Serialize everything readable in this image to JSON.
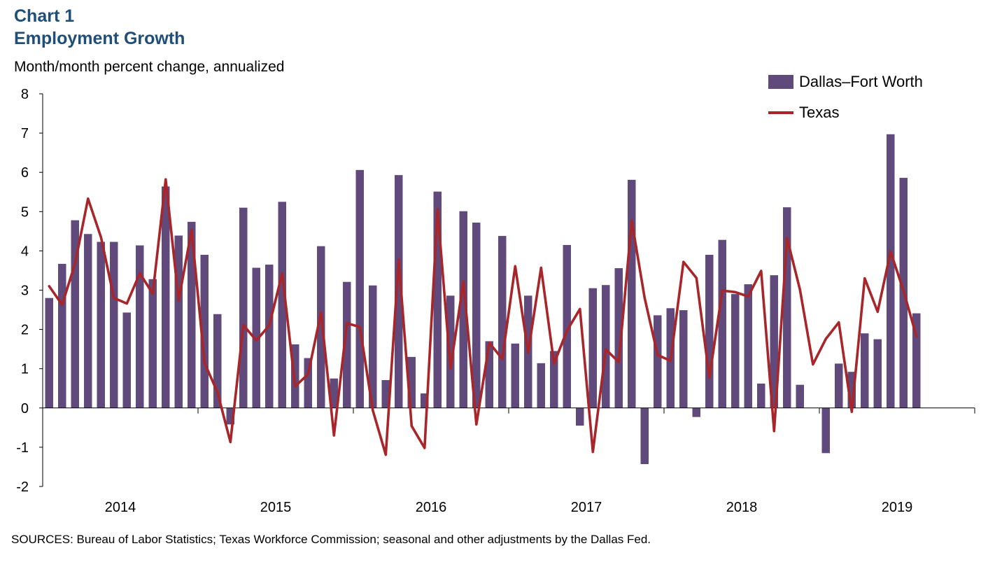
{
  "chart_data": {
    "type": "bar+line",
    "title": "Chart 1",
    "subtitle": "Employment Growth",
    "ylabel": "Month/month percent change, annualized",
    "ylim": [
      -2,
      8
    ],
    "yticks": [
      "8",
      "7",
      "6",
      "5",
      "4",
      "3",
      "2",
      "1",
      "0",
      "-1",
      "-2"
    ],
    "ytick_values": [
      8,
      7,
      6,
      5,
      4,
      3,
      2,
      1,
      0,
      -1,
      -2
    ],
    "xtick_labels": [
      "2014",
      "2015",
      "2016",
      "2017",
      "2018",
      "2019"
    ],
    "start": "2013-12",
    "periods": 68,
    "series": [
      {
        "name": "Dallas–Fort Worth",
        "kind": "bar",
        "color": "#604a7b",
        "values": [
          2.8,
          3.67,
          4.78,
          4.43,
          4.23,
          4.23,
          2.43,
          4.14,
          3.28,
          5.64,
          4.39,
          4.74,
          3.9,
          2.39,
          -0.42,
          5.1,
          3.57,
          3.65,
          5.25,
          1.62,
          1.27,
          4.12,
          0.75,
          3.21,
          6.06,
          3.12,
          0.71,
          5.93,
          1.3,
          0.37,
          5.51,
          2.86,
          5.01,
          4.72,
          1.7,
          4.38,
          1.64,
          2.86,
          1.14,
          1.45,
          4.15,
          -0.45,
          3.05,
          3.13,
          3.56,
          5.81,
          -1.43,
          2.36,
          2.54,
          2.49,
          -0.23,
          3.9,
          4.28,
          2.9,
          3.15,
          0.62,
          3.38,
          5.11,
          0.59,
          0.0,
          -1.15,
          1.13,
          0.92,
          1.9,
          1.75,
          6.97,
          5.86,
          2.41
        ]
      },
      {
        "name": "Texas",
        "kind": "line",
        "color": "#a8262a",
        "values": [
          3.1,
          2.63,
          3.68,
          5.33,
          4.35,
          2.8,
          2.66,
          3.43,
          2.91,
          5.82,
          2.74,
          4.53,
          1.15,
          0.4,
          -0.87,
          2.11,
          1.72,
          2.1,
          3.43,
          0.55,
          0.86,
          2.43,
          -0.7,
          2.16,
          2.06,
          -0.06,
          -1.19,
          3.78,
          -0.46,
          -1.02,
          5.06,
          1.0,
          3.22,
          -0.42,
          1.66,
          1.25,
          3.61,
          1.41,
          3.57,
          1.13,
          1.97,
          2.52,
          -1.12,
          1.49,
          1.17,
          4.77,
          2.8,
          1.35,
          1.2,
          3.72,
          3.31,
          0.77,
          2.99,
          2.95,
          2.84,
          3.49,
          -0.59,
          4.33,
          3.01,
          1.11,
          1.76,
          2.18,
          -0.1,
          3.3,
          2.45,
          3.98,
          2.98,
          1.82
        ]
      }
    ],
    "legend": [
      "Dallas–Fort Worth",
      "Texas"
    ],
    "legend_position": "top-right"
  },
  "source": "SOURCES: Bureau of Labor Statistics; Texas Workforce Commission; seasonal and other adjustments by the Dallas Fed."
}
